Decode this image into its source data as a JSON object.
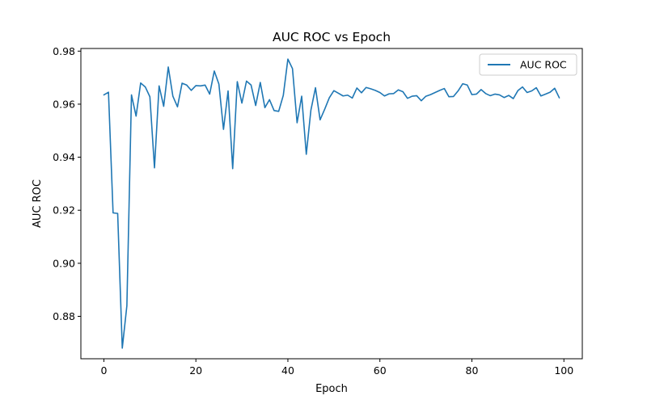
{
  "chart_data": {
    "type": "line",
    "title": "AUC ROC vs Epoch",
    "xlabel": "Epoch",
    "ylabel": "AUC ROC",
    "xlim": [
      -5,
      104
    ],
    "ylim": [
      0.864,
      0.981
    ],
    "xticks": [
      0,
      20,
      40,
      60,
      80,
      100
    ],
    "yticks": [
      0.88,
      0.9,
      0.92,
      0.94,
      0.96,
      0.98
    ],
    "ytick_labels": [
      "0.88",
      "0.90",
      "0.92",
      "0.94",
      "0.96",
      "0.98"
    ],
    "grid": false,
    "legend_position": "top-right",
    "series": [
      {
        "name": "AUC ROC",
        "color": "#1f77b4",
        "x": [
          0,
          1,
          2,
          3,
          4,
          5,
          6,
          7,
          8,
          9,
          10,
          11,
          12,
          13,
          14,
          15,
          16,
          17,
          18,
          19,
          20,
          21,
          22,
          23,
          24,
          25,
          26,
          27,
          28,
          29,
          30,
          31,
          32,
          33,
          34,
          35,
          36,
          37,
          38,
          39,
          40,
          41,
          42,
          43,
          44,
          45,
          46,
          47,
          48,
          49,
          50,
          51,
          52,
          53,
          54,
          55,
          56,
          57,
          58,
          59,
          60,
          61,
          62,
          63,
          64,
          65,
          66,
          67,
          68,
          69,
          70,
          71,
          72,
          73,
          74,
          75,
          76,
          77,
          78,
          79,
          80,
          81,
          82,
          83,
          84,
          85,
          86,
          87,
          88,
          89,
          90,
          91,
          92,
          93,
          94,
          95,
          96,
          97,
          98,
          99
        ],
        "values": [
          0.9635,
          0.9645,
          0.919,
          0.9188,
          0.868,
          0.884,
          0.9635,
          0.9555,
          0.968,
          0.9665,
          0.9628,
          0.936,
          0.9669,
          0.9592,
          0.974,
          0.963,
          0.959,
          0.9679,
          0.9672,
          0.9652,
          0.967,
          0.9669,
          0.9672,
          0.9638,
          0.9725,
          0.9676,
          0.9505,
          0.965,
          0.9357,
          0.9685,
          0.9604,
          0.9687,
          0.9672,
          0.9595,
          0.9682,
          0.9587,
          0.9617,
          0.9576,
          0.9573,
          0.9633,
          0.977,
          0.9734,
          0.953,
          0.963,
          0.9411,
          0.9577,
          0.9662,
          0.9541,
          0.9581,
          0.9624,
          0.9651,
          0.9641,
          0.9631,
          0.9634,
          0.9623,
          0.9661,
          0.9643,
          0.9663,
          0.9658,
          0.9652,
          0.9644,
          0.9631,
          0.9639,
          0.964,
          0.9654,
          0.9647,
          0.9622,
          0.963,
          0.9632,
          0.9613,
          0.963,
          0.9636,
          0.9644,
          0.9652,
          0.9659,
          0.9628,
          0.9629,
          0.965,
          0.9677,
          0.9672,
          0.9636,
          0.9638,
          0.9655,
          0.964,
          0.9632,
          0.9638,
          0.9635,
          0.9625,
          0.9633,
          0.9621,
          0.9651,
          0.9665,
          0.9644,
          0.965,
          0.9662,
          0.9631,
          0.9638,
          0.9645,
          0.966,
          0.9624
        ]
      }
    ]
  }
}
